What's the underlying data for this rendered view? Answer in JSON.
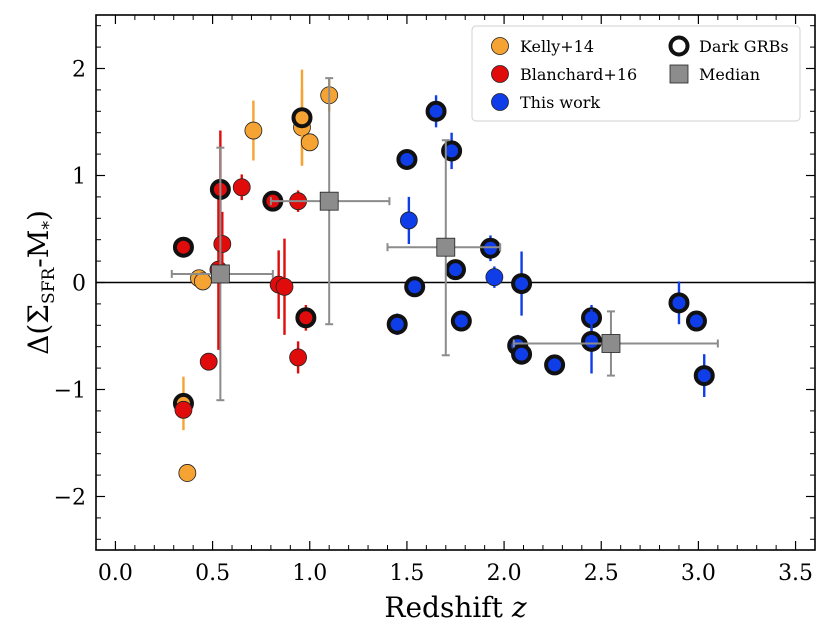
{
  "chart_data": {
    "type": "scatter",
    "xlabel": "Redshift",
    "xlabel_var": "z",
    "ylabel": "Δ(Σ",
    "ylabel_sub": "SFR",
    "ylabel_tail": "-M",
    "ylabel_sub2": "*",
    "ylabel_close": ")",
    "xlim": [
      -0.1,
      3.6
    ],
    "ylim": [
      -2.5,
      2.5
    ],
    "xticks": [
      0.0,
      0.5,
      1.0,
      1.5,
      2.0,
      2.5,
      3.0,
      3.5
    ],
    "xtick_labels": [
      "0.0",
      "0.5",
      "1.0",
      "1.5",
      "2.0",
      "2.5",
      "3.0",
      "3.5"
    ],
    "yticks": [
      -2,
      -1,
      0,
      1,
      2
    ],
    "ytick_labels": [
      "−2",
      "−1",
      "0",
      "1",
      "2"
    ],
    "reference_line_y": 0,
    "legend_position": "top-right",
    "legend": [
      {
        "label": "Kelly+14",
        "marker": "circle",
        "color": "#f5a333"
      },
      {
        "label": "Blanchard+16",
        "marker": "circle",
        "color": "#e00b0b"
      },
      {
        "label": "This work",
        "marker": "circle",
        "color": "#0f3de8"
      },
      {
        "label": "Dark GRBs",
        "marker": "open-circle",
        "color": "#111111"
      },
      {
        "label": "Median",
        "marker": "square",
        "color": "#8c8c8c"
      }
    ],
    "series": [
      {
        "name": "Kelly+14",
        "color": "#f5a333",
        "points": [
          {
            "x": 0.35,
            "y": -1.13,
            "err": 0.25,
            "dark": true
          },
          {
            "x": 0.37,
            "y": -1.78,
            "err": 0,
            "dark": false
          },
          {
            "x": 0.43,
            "y": 0.04,
            "err": 0,
            "dark": false
          },
          {
            "x": 0.45,
            "y": 0.01,
            "err": 0,
            "dark": false
          },
          {
            "x": 0.71,
            "y": 1.42,
            "err": 0.28,
            "dark": false
          },
          {
            "x": 0.96,
            "y": 1.45,
            "err": 0.35,
            "dark": false
          },
          {
            "x": 0.96,
            "y": 1.54,
            "err": 0.45,
            "dark": true
          },
          {
            "x": 1.0,
            "y": 1.31,
            "err": 0,
            "dark": false
          },
          {
            "x": 1.1,
            "y": 1.75,
            "err": 0.15,
            "dark": false
          }
        ]
      },
      {
        "name": "Blanchard+16",
        "color": "#e00b0b",
        "points": [
          {
            "x": 0.35,
            "y": -1.19,
            "err": 0,
            "dark": false
          },
          {
            "x": 0.35,
            "y": 0.33,
            "err": 0,
            "dark": true
          },
          {
            "x": 0.48,
            "y": -0.74,
            "err": 0.08,
            "dark": false
          },
          {
            "x": 0.53,
            "y": 0.12,
            "err": 0.75,
            "dark": false
          },
          {
            "x": 0.54,
            "y": 0.87,
            "err": 0.55,
            "dark": true
          },
          {
            "x": 0.55,
            "y": 0.36,
            "err": 0.3,
            "dark": false
          },
          {
            "x": 0.65,
            "y": 0.89,
            "err": 0.12,
            "dark": false
          },
          {
            "x": 0.81,
            "y": 0.76,
            "err": 0,
            "dark": true
          },
          {
            "x": 0.84,
            "y": -0.02,
            "err": 0.32,
            "dark": false
          },
          {
            "x": 0.87,
            "y": -0.04,
            "err": 0.45,
            "dark": false
          },
          {
            "x": 0.94,
            "y": -0.7,
            "err": 0.15,
            "dark": false
          },
          {
            "x": 0.94,
            "y": 0.76,
            "err": 0.1,
            "dark": false
          },
          {
            "x": 0.98,
            "y": -0.33,
            "err": 0.12,
            "dark": true
          }
        ]
      },
      {
        "name": "This work",
        "color": "#0f3de8",
        "points": [
          {
            "x": 1.45,
            "y": -0.39,
            "err": 0.1,
            "dark": true
          },
          {
            "x": 1.5,
            "y": 1.15,
            "err": 0,
            "dark": true
          },
          {
            "x": 1.51,
            "y": 0.58,
            "err": 0.22,
            "dark": false
          },
          {
            "x": 1.54,
            "y": -0.04,
            "err": 0,
            "dark": true
          },
          {
            "x": 1.65,
            "y": 1.6,
            "err": 0.15,
            "dark": true
          },
          {
            "x": 1.73,
            "y": 1.23,
            "err": 0.17,
            "dark": true
          },
          {
            "x": 1.75,
            "y": 0.12,
            "err": 0,
            "dark": true
          },
          {
            "x": 1.78,
            "y": -0.36,
            "err": 0,
            "dark": true
          },
          {
            "x": 1.93,
            "y": 0.32,
            "err": 0.12,
            "dark": true
          },
          {
            "x": 1.95,
            "y": 0.05,
            "err": 0.1,
            "dark": false
          },
          {
            "x": 2.07,
            "y": -0.59,
            "err": 0.1,
            "dark": true
          },
          {
            "x": 2.09,
            "y": -0.01,
            "err": 0.3,
            "dark": true
          },
          {
            "x": 2.09,
            "y": -0.67,
            "err": 0.08,
            "dark": true
          },
          {
            "x": 2.26,
            "y": -0.77,
            "err": 0,
            "dark": true
          },
          {
            "x": 2.45,
            "y": -0.33,
            "err": 0.12,
            "dark": true
          },
          {
            "x": 2.45,
            "y": -0.55,
            "err": 0.3,
            "dark": true
          },
          {
            "x": 2.9,
            "y": -0.19,
            "err": 0.2,
            "dark": true
          },
          {
            "x": 2.99,
            "y": -0.36,
            "err": 0,
            "dark": true
          },
          {
            "x": 3.03,
            "y": -0.87,
            "err": 0.2,
            "dark": true
          }
        ]
      },
      {
        "name": "Median",
        "color": "#8c8c8c",
        "points": [
          {
            "x": 0.54,
            "y": 0.08,
            "xerr_lo": 0.25,
            "xerr_hi": 0.27,
            "yerr_lo": 1.18,
            "yerr_hi": 1.18
          },
          {
            "x": 1.1,
            "y": 0.76,
            "xerr_lo": 0.3,
            "xerr_hi": 0.31,
            "yerr_lo": 1.15,
            "yerr_hi": 1.15
          },
          {
            "x": 1.7,
            "y": 0.33,
            "xerr_lo": 0.3,
            "xerr_hi": 0.28,
            "yerr_lo": 1.01,
            "yerr_hi": 1.0
          },
          {
            "x": 2.55,
            "y": -0.57,
            "xerr_lo": 0.5,
            "xerr_hi": 0.55,
            "yerr_lo": 0.3,
            "yerr_hi": 0.3
          }
        ]
      }
    ]
  }
}
